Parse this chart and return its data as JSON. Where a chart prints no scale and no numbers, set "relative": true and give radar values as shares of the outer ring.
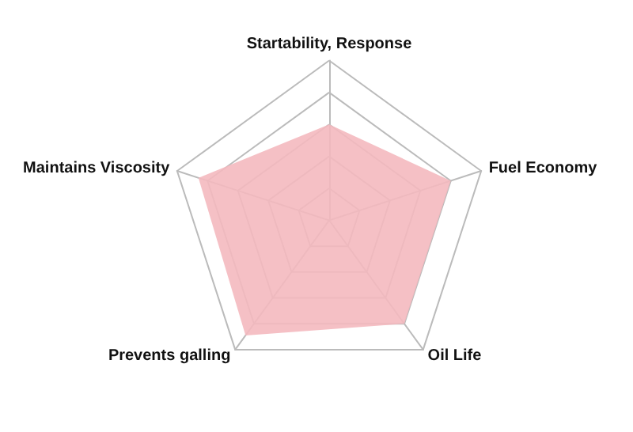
{
  "chart_data": {
    "type": "radar",
    "relative": true,
    "grid": true,
    "marker": "none",
    "categories": [
      "Startability, Response",
      "Fuel Economy",
      "Oil Life",
      "Prevents galling",
      "Maintains Viscosity"
    ],
    "series": [
      {
        "color": "#f4b9bf",
        "values": [
          0.6,
          0.8,
          0.8,
          0.89,
          0.86
        ]
      }
    ]
  }
}
